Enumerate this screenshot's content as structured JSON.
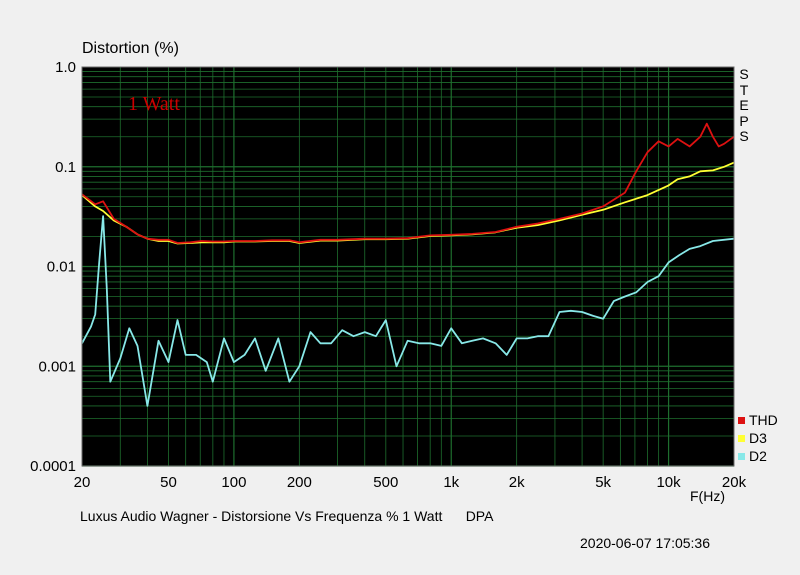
{
  "chart_data": {
    "type": "line",
    "title": "Distortion (%)",
    "annotation": "1 Watt",
    "steps_label": [
      "S",
      "T",
      "E",
      "P",
      "S"
    ],
    "caption": "Luxus Audio Wagner - Distorsione Vs Frequenza % 1 Watt      DPA",
    "timestamp": "2020-06-07 17:05:36",
    "xlabel": "F(Hz)",
    "xscale": "log",
    "yscale": "log",
    "xlim": [
      20,
      20000
    ],
    "ylim": [
      0.0001,
      1.0
    ],
    "x_ticks": [
      {
        "v": 20,
        "label": "20"
      },
      {
        "v": 50,
        "label": "50"
      },
      {
        "v": 100,
        "label": "100"
      },
      {
        "v": 200,
        "label": "200"
      },
      {
        "v": 500,
        "label": "500"
      },
      {
        "v": 1000,
        "label": "1k"
      },
      {
        "v": 2000,
        "label": "2k"
      },
      {
        "v": 5000,
        "label": "5k"
      },
      {
        "v": 10000,
        "label": "10k"
      },
      {
        "v": 20000,
        "label": "20k"
      }
    ],
    "y_ticks": [
      {
        "v": 1.0,
        "label": "1.0"
      },
      {
        "v": 0.1,
        "label": "0.1"
      },
      {
        "v": 0.01,
        "label": "0.01"
      },
      {
        "v": 0.001,
        "label": "0.001"
      },
      {
        "v": 0.0001,
        "label": "0.0001"
      }
    ],
    "grid": true,
    "legend_position": "bottom-right",
    "colors": {
      "background": "#000000",
      "grid": "#1e6e2e",
      "annotation": "#cc0000"
    },
    "series": [
      {
        "name": "THD",
        "color": "#dd1111",
        "points": [
          [
            20,
            0.053
          ],
          [
            23,
            0.042
          ],
          [
            25,
            0.045
          ],
          [
            28,
            0.03
          ],
          [
            32,
            0.025
          ],
          [
            36,
            0.021
          ],
          [
            40,
            0.019
          ],
          [
            45,
            0.0185
          ],
          [
            50,
            0.0185
          ],
          [
            55,
            0.0172
          ],
          [
            63,
            0.0175
          ],
          [
            71,
            0.018
          ],
          [
            80,
            0.0178
          ],
          [
            90,
            0.0178
          ],
          [
            100,
            0.018
          ],
          [
            125,
            0.018
          ],
          [
            150,
            0.0183
          ],
          [
            180,
            0.0183
          ],
          [
            200,
            0.0175
          ],
          [
            250,
            0.0185
          ],
          [
            300,
            0.0185
          ],
          [
            400,
            0.019
          ],
          [
            500,
            0.019
          ],
          [
            630,
            0.0192
          ],
          [
            800,
            0.0205
          ],
          [
            1000,
            0.0208
          ],
          [
            1250,
            0.0212
          ],
          [
            1600,
            0.0222
          ],
          [
            2000,
            0.025
          ],
          [
            2500,
            0.027
          ],
          [
            3150,
            0.03
          ],
          [
            4000,
            0.034
          ],
          [
            5000,
            0.04
          ],
          [
            6300,
            0.055
          ],
          [
            7100,
            0.09
          ],
          [
            8000,
            0.14
          ],
          [
            9000,
            0.18
          ],
          [
            10000,
            0.16
          ],
          [
            11000,
            0.19
          ],
          [
            12500,
            0.16
          ],
          [
            14000,
            0.2
          ],
          [
            15000,
            0.27
          ],
          [
            16000,
            0.2
          ],
          [
            17000,
            0.16
          ],
          [
            18000,
            0.17
          ],
          [
            20000,
            0.2
          ]
        ]
      },
      {
        "name": "D3",
        "color": "#ffff33",
        "points": [
          [
            20,
            0.052
          ],
          [
            23,
            0.04
          ],
          [
            25,
            0.036
          ],
          [
            28,
            0.029
          ],
          [
            32,
            0.025
          ],
          [
            36,
            0.021
          ],
          [
            40,
            0.019
          ],
          [
            45,
            0.018
          ],
          [
            50,
            0.018
          ],
          [
            55,
            0.017
          ],
          [
            63,
            0.0172
          ],
          [
            71,
            0.0175
          ],
          [
            80,
            0.0175
          ],
          [
            90,
            0.0175
          ],
          [
            100,
            0.0178
          ],
          [
            125,
            0.0178
          ],
          [
            150,
            0.018
          ],
          [
            180,
            0.018
          ],
          [
            200,
            0.0172
          ],
          [
            250,
            0.0182
          ],
          [
            300,
            0.0182
          ],
          [
            400,
            0.0188
          ],
          [
            500,
            0.0188
          ],
          [
            630,
            0.019
          ],
          [
            800,
            0.0202
          ],
          [
            1000,
            0.0205
          ],
          [
            1250,
            0.021
          ],
          [
            1600,
            0.022
          ],
          [
            2000,
            0.0245
          ],
          [
            2500,
            0.026
          ],
          [
            3150,
            0.029
          ],
          [
            4000,
            0.033
          ],
          [
            5000,
            0.037
          ],
          [
            6300,
            0.044
          ],
          [
            8000,
            0.052
          ],
          [
            10000,
            0.065
          ],
          [
            11000,
            0.075
          ],
          [
            12500,
            0.08
          ],
          [
            14000,
            0.09
          ],
          [
            16000,
            0.092
          ],
          [
            18000,
            0.1
          ],
          [
            20000,
            0.11
          ]
        ]
      },
      {
        "name": "D2",
        "color": "#88e8e8",
        "points": [
          [
            20,
            0.0017
          ],
          [
            22,
            0.0025
          ],
          [
            23,
            0.0033
          ],
          [
            24,
            0.011
          ],
          [
            25,
            0.032
          ],
          [
            26,
            0.006
          ],
          [
            27,
            0.0007
          ],
          [
            30,
            0.0012
          ],
          [
            33,
            0.0024
          ],
          [
            36,
            0.0016
          ],
          [
            40,
            0.0004
          ],
          [
            45,
            0.0018
          ],
          [
            50,
            0.0011
          ],
          [
            55,
            0.0029
          ],
          [
            60,
            0.0013
          ],
          [
            67,
            0.0013
          ],
          [
            75,
            0.0011
          ],
          [
            80,
            0.0007
          ],
          [
            90,
            0.0019
          ],
          [
            100,
            0.0011
          ],
          [
            112,
            0.0013
          ],
          [
            125,
            0.0019
          ],
          [
            140,
            0.0009
          ],
          [
            160,
            0.0019
          ],
          [
            180,
            0.0007
          ],
          [
            200,
            0.001
          ],
          [
            225,
            0.0022
          ],
          [
            250,
            0.0017
          ],
          [
            280,
            0.0017
          ],
          [
            315,
            0.0023
          ],
          [
            355,
            0.002
          ],
          [
            400,
            0.0022
          ],
          [
            450,
            0.002
          ],
          [
            500,
            0.0029
          ],
          [
            560,
            0.001
          ],
          [
            630,
            0.0018
          ],
          [
            710,
            0.0017
          ],
          [
            800,
            0.0017
          ],
          [
            900,
            0.0016
          ],
          [
            1000,
            0.0024
          ],
          [
            1120,
            0.0017
          ],
          [
            1250,
            0.0018
          ],
          [
            1400,
            0.0019
          ],
          [
            1600,
            0.0017
          ],
          [
            1800,
            0.0013
          ],
          [
            2000,
            0.0019
          ],
          [
            2240,
            0.0019
          ],
          [
            2500,
            0.002
          ],
          [
            2800,
            0.002
          ],
          [
            3150,
            0.0035
          ],
          [
            3550,
            0.0036
          ],
          [
            4000,
            0.0035
          ],
          [
            4500,
            0.0032
          ],
          [
            5000,
            0.003
          ],
          [
            5600,
            0.0045
          ],
          [
            6300,
            0.005
          ],
          [
            7100,
            0.0055
          ],
          [
            8000,
            0.007
          ],
          [
            9000,
            0.008
          ],
          [
            10000,
            0.011
          ],
          [
            11200,
            0.013
          ],
          [
            12500,
            0.015
          ],
          [
            14000,
            0.016
          ],
          [
            16000,
            0.018
          ],
          [
            20000,
            0.019
          ]
        ]
      }
    ]
  }
}
